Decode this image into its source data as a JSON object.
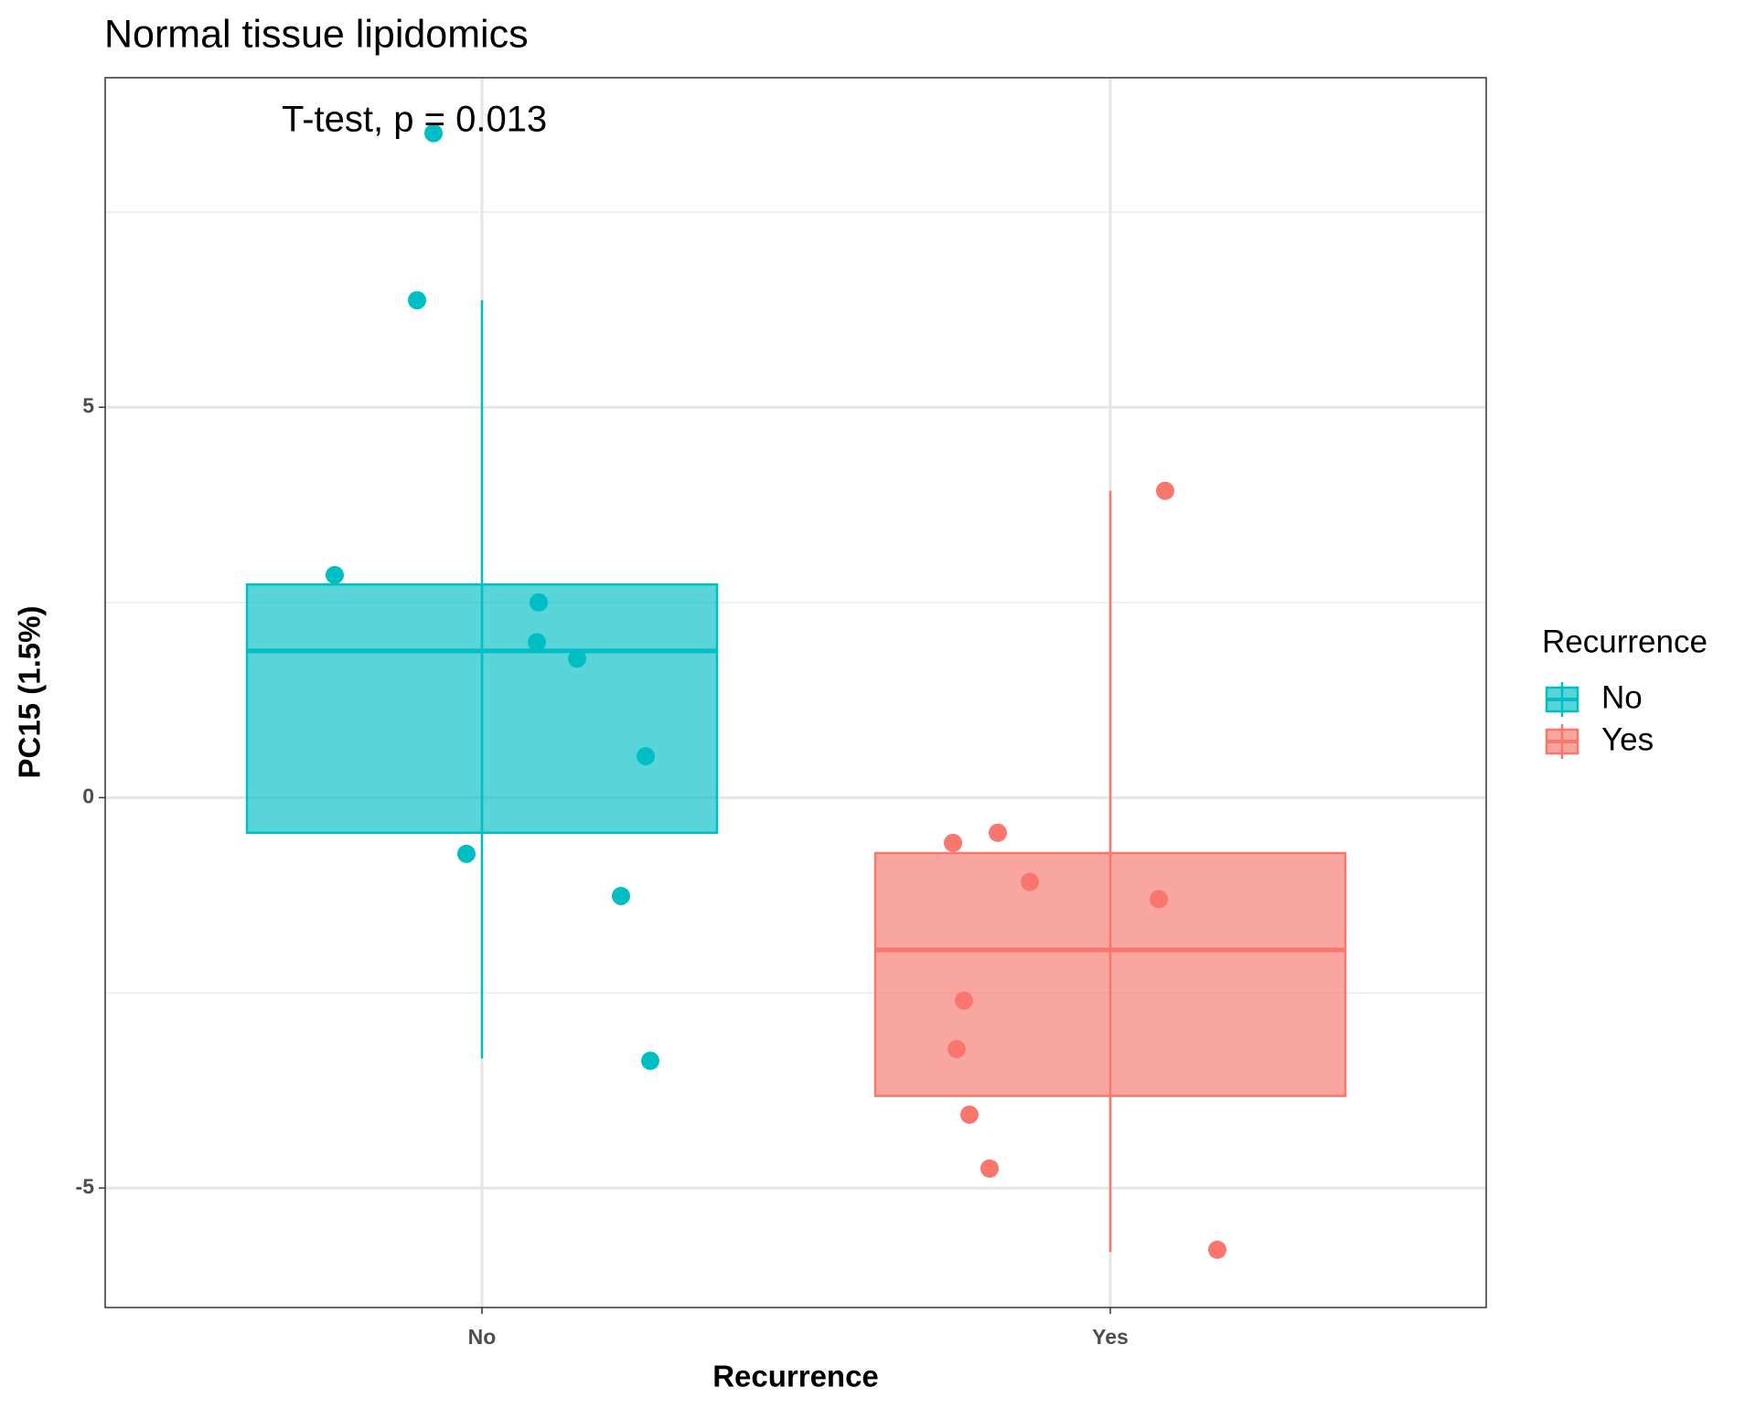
{
  "chart_data": {
    "type": "box",
    "title": "Normal tissue lipidomics",
    "annotation": "T-test, p = 0.013",
    "x_label": "Recurrence",
    "y_label": "PC15 (1.5%)",
    "legend_title": "Recurrence",
    "categories": [
      "No",
      "Yes"
    ],
    "ylim": [
      -6.53,
      9.22
    ],
    "yticks": [
      -5,
      0,
      5
    ],
    "grid": true,
    "legend_position": "right",
    "series": [
      {
        "name": "No",
        "color": "#00BFC4",
        "box": {
          "min": -3.34,
          "q1": -0.45,
          "median": 1.88,
          "q3": 2.73,
          "max": 6.37
        },
        "values": [
          8.51,
          6.37,
          2.85,
          2.5,
          1.99,
          1.78,
          0.53,
          -0.72,
          -1.26,
          -3.37
        ]
      },
      {
        "name": "Yes",
        "color": "#F8766D",
        "box": {
          "min": -5.82,
          "q1": -3.82,
          "median": -1.95,
          "q3": -0.71,
          "max": 3.93
        },
        "values": [
          3.93,
          -0.45,
          -0.58,
          -1.08,
          -1.3,
          -2.6,
          -3.22,
          -4.06,
          -4.75,
          -5.79
        ]
      }
    ]
  }
}
